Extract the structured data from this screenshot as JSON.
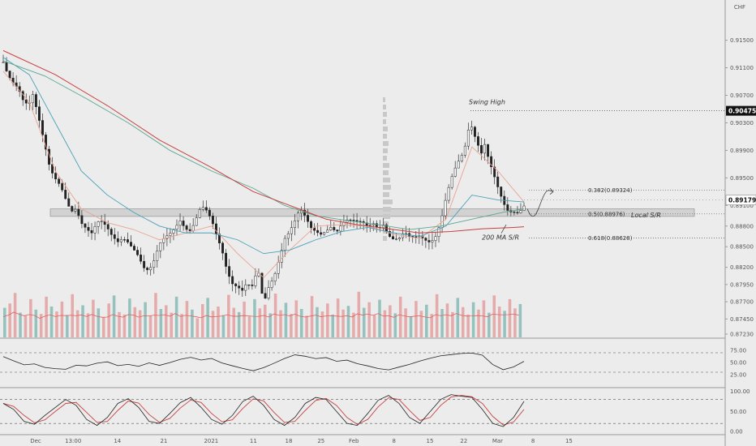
{
  "chart_data": {
    "type": "candlestick",
    "currency": "CHF",
    "yticks": [
      "0.91500",
      "0.91100",
      "0.90700",
      "0.90300",
      "0.89900",
      "0.89500",
      "0.89100",
      "0.88800",
      "0.88500",
      "0.88200",
      "0.87950",
      "0.87700",
      "0.87450",
      "0.87230"
    ],
    "ylim": [
      0.8723,
      0.9174
    ],
    "xticks": [
      {
        "label": "Dec",
        "x": 0.0
      },
      {
        "label": "13:00",
        "x": 0.072
      },
      {
        "label": "14",
        "x": 0.157
      },
      {
        "label": "21",
        "x": 0.246
      },
      {
        "label": "2021",
        "x": 0.337
      },
      {
        "label": "11",
        "x": 0.418
      },
      {
        "label": "18",
        "x": 0.486
      },
      {
        "label": "25",
        "x": 0.548
      },
      {
        "label": "Feb",
        "x": 0.611
      },
      {
        "label": "8",
        "x": 0.688
      },
      {
        "label": "15",
        "x": 0.757
      },
      {
        "label": "22",
        "x": 0.822
      },
      {
        "label": "Mar",
        "x": 0.887
      },
      {
        "label": "8",
        "x": 0.955
      },
      {
        "label": "15",
        "x": 1.024
      }
    ],
    "close_path": [
      [
        0.0,
        0.9118
      ],
      [
        0.01,
        0.9092
      ],
      [
        0.02,
        0.9078
      ],
      [
        0.03,
        0.907
      ],
      [
        0.04,
        0.9055
      ],
      [
        0.05,
        0.906
      ],
      [
        0.055,
        0.908
      ],
      [
        0.06,
        0.907
      ],
      [
        0.07,
        0.904
      ],
      [
        0.08,
        0.9005
      ],
      [
        0.09,
        0.8965
      ],
      [
        0.1,
        0.8945
      ],
      [
        0.11,
        0.893
      ],
      [
        0.12,
        0.891
      ],
      [
        0.13,
        0.8895
      ],
      [
        0.14,
        0.8905
      ],
      [
        0.15,
        0.889
      ],
      [
        0.16,
        0.8885
      ],
      [
        0.17,
        0.8878
      ],
      [
        0.18,
        0.889
      ],
      [
        0.19,
        0.8885
      ],
      [
        0.2,
        0.887
      ],
      [
        0.21,
        0.8855
      ],
      [
        0.22,
        0.885
      ],
      [
        0.23,
        0.886
      ],
      [
        0.24,
        0.886
      ],
      [
        0.25,
        0.8855
      ],
      [
        0.26,
        0.8845
      ],
      [
        0.27,
        0.8825
      ],
      [
        0.28,
        0.8815
      ],
      [
        0.29,
        0.8825
      ],
      [
        0.3,
        0.8845
      ],
      [
        0.31,
        0.8855
      ],
      [
        0.32,
        0.8865
      ],
      [
        0.33,
        0.888
      ],
      [
        0.34,
        0.8895
      ],
      [
        0.35,
        0.8885
      ],
      [
        0.36,
        0.888
      ],
      [
        0.37,
        0.8892
      ],
      [
        0.38,
        0.8905
      ],
      [
        0.39,
        0.8895
      ],
      [
        0.4,
        0.888
      ],
      [
        0.41,
        0.886
      ],
      [
        0.42,
        0.8845
      ],
      [
        0.43,
        0.882
      ],
      [
        0.44,
        0.8805
      ],
      [
        0.45,
        0.88
      ],
      [
        0.46,
        0.879
      ],
      [
        0.47,
        0.88
      ],
      [
        0.475,
        0.8775
      ],
      [
        0.48,
        0.8795
      ],
      [
        0.49,
        0.8805
      ],
      [
        0.5,
        0.876
      ],
      [
        0.51,
        0.879
      ],
      [
        0.52,
        0.881
      ],
      [
        0.53,
        0.884
      ],
      [
        0.54,
        0.887
      ],
      [
        0.55,
        0.8878
      ],
      [
        0.56,
        0.8888
      ],
      [
        0.57,
        0.89
      ],
      [
        0.58,
        0.8885
      ],
      [
        0.59,
        0.887
      ],
      [
        0.6,
        0.8868
      ],
      [
        0.61,
        0.887
      ],
      [
        0.62,
        0.888
      ],
      [
        0.63,
        0.8888
      ],
      [
        0.64,
        0.8878
      ],
      [
        0.65,
        0.8885
      ],
      [
        0.66,
        0.8885
      ],
      [
        0.67,
        0.888
      ],
      [
        0.68,
        0.8878
      ],
      [
        0.69,
        0.888
      ],
      [
        0.7,
        0.888
      ],
      [
        0.71,
        0.889
      ],
      [
        0.72,
        0.8885
      ],
      [
        0.73,
        0.889
      ],
      [
        0.74,
        0.887
      ],
      [
        0.75,
        0.8858
      ],
      [
        0.76,
        0.8855
      ],
      [
        0.77,
        0.8862
      ],
      [
        0.78,
        0.8858
      ],
      [
        0.79,
        0.8862
      ],
      [
        0.8,
        0.887
      ],
      [
        0.81,
        0.8868
      ],
      [
        0.82,
        0.8865
      ],
      [
        0.83,
        0.887
      ],
      [
        0.84,
        0.8885
      ],
      [
        0.85,
        0.8915
      ],
      [
        0.86,
        0.894
      ],
      [
        0.87,
        0.896
      ],
      [
        0.88,
        0.8978
      ],
      [
        0.89,
        0.9005
      ],
      [
        0.895,
        0.9035
      ],
      [
        0.9,
        0.903
      ],
      [
        0.91,
        0.901
      ],
      [
        0.92,
        0.899
      ],
      [
        0.925,
        0.9005
      ],
      [
        0.93,
        0.8985
      ],
      [
        0.94,
        0.8955
      ],
      [
        0.95,
        0.8928
      ],
      [
        0.96,
        0.8905
      ],
      [
        0.97,
        0.8895
      ],
      [
        0.98,
        0.89
      ],
      [
        0.99,
        0.8905
      ],
      [
        1.0,
        0.8918
      ]
    ],
    "lows": [
      [
        0.0,
        0.9105
      ],
      [
        0.08,
        0.899
      ],
      [
        0.18,
        0.8875
      ],
      [
        0.27,
        0.8855
      ],
      [
        0.3,
        0.882
      ],
      [
        0.36,
        0.887
      ],
      [
        0.44,
        0.8825
      ],
      [
        0.475,
        0.8785
      ],
      [
        0.51,
        0.877
      ],
      [
        0.55,
        0.886
      ],
      [
        0.58,
        0.887
      ],
      [
        0.66,
        0.8868
      ],
      [
        0.72,
        0.8875
      ],
      [
        0.77,
        0.8852
      ],
      [
        0.85,
        0.8872
      ],
      [
        0.97,
        0.8882
      ],
      [
        1.0,
        0.89
      ]
    ],
    "highs": [
      [
        0.0,
        0.9135
      ],
      [
        0.06,
        0.9085
      ],
      [
        0.17,
        0.89
      ],
      [
        0.21,
        0.887
      ],
      [
        0.3,
        0.8875
      ],
      [
        0.34,
        0.8905
      ],
      [
        0.38,
        0.8915
      ],
      [
        0.5,
        0.882
      ],
      [
        0.56,
        0.892
      ],
      [
        0.62,
        0.8915
      ],
      [
        0.73,
        0.8905
      ],
      [
        0.895,
        0.9045
      ],
      [
        0.925,
        0.9012
      ],
      [
        1.0,
        0.8935
      ]
    ],
    "ma_fast": [
      [
        0.0,
        0.9105
      ],
      [
        0.05,
        0.906
      ],
      [
        0.1,
        0.896
      ],
      [
        0.15,
        0.8905
      ],
      [
        0.2,
        0.8885
      ],
      [
        0.25,
        0.8875
      ],
      [
        0.3,
        0.886
      ],
      [
        0.35,
        0.887
      ],
      [
        0.4,
        0.888
      ],
      [
        0.45,
        0.884
      ],
      [
        0.5,
        0.8805
      ],
      [
        0.55,
        0.8845
      ],
      [
        0.6,
        0.888
      ],
      [
        0.65,
        0.8882
      ],
      [
        0.7,
        0.888
      ],
      [
        0.75,
        0.8868
      ],
      [
        0.8,
        0.8862
      ],
      [
        0.85,
        0.889
      ],
      [
        0.9,
        0.8995
      ],
      [
        0.95,
        0.896
      ],
      [
        1.0,
        0.8915
      ]
    ],
    "ma_mid": [
      [
        0.0,
        0.9125
      ],
      [
        0.05,
        0.91
      ],
      [
        0.1,
        0.903
      ],
      [
        0.15,
        0.896
      ],
      [
        0.2,
        0.8925
      ],
      [
        0.25,
        0.89
      ],
      [
        0.3,
        0.888
      ],
      [
        0.35,
        0.887
      ],
      [
        0.4,
        0.887
      ],
      [
        0.45,
        0.886
      ],
      [
        0.5,
        0.884
      ],
      [
        0.55,
        0.8845
      ],
      [
        0.6,
        0.886
      ],
      [
        0.65,
        0.8872
      ],
      [
        0.7,
        0.8878
      ],
      [
        0.75,
        0.887
      ],
      [
        0.8,
        0.8865
      ],
      [
        0.85,
        0.888
      ],
      [
        0.9,
        0.8925
      ],
      [
        0.95,
        0.8918
      ],
      [
        1.0,
        0.8915
      ]
    ],
    "ma_slow": [
      [
        0.0,
        0.912
      ],
      [
        0.08,
        0.9098
      ],
      [
        0.16,
        0.9065
      ],
      [
        0.24,
        0.903
      ],
      [
        0.32,
        0.899
      ],
      [
        0.4,
        0.896
      ],
      [
        0.48,
        0.8935
      ],
      [
        0.54,
        0.891
      ],
      [
        0.6,
        0.8895
      ],
      [
        0.66,
        0.8888
      ],
      [
        0.72,
        0.8882
      ],
      [
        0.78,
        0.8875
      ],
      [
        0.84,
        0.888
      ],
      [
        0.9,
        0.889
      ],
      [
        0.96,
        0.89
      ],
      [
        1.0,
        0.8905
      ]
    ],
    "ma_200": [
      [
        0.0,
        0.9135
      ],
      [
        0.1,
        0.91
      ],
      [
        0.2,
        0.9055
      ],
      [
        0.3,
        0.9005
      ],
      [
        0.4,
        0.8965
      ],
      [
        0.48,
        0.893
      ],
      [
        0.55,
        0.891
      ],
      [
        0.62,
        0.889
      ],
      [
        0.68,
        0.8882
      ],
      [
        0.74,
        0.8876
      ],
      [
        0.8,
        0.887
      ],
      [
        0.86,
        0.8872
      ],
      [
        0.92,
        0.8876
      ],
      [
        0.98,
        0.8878
      ],
      [
        1.0,
        0.8879
      ]
    ],
    "levels": {
      "swing_high": {
        "label": "Swing High",
        "price": 0.90475,
        "price_label": "0.90475"
      },
      "fib_382": {
        "label": "0.382(0.89324)",
        "price": 0.89324
      },
      "fib_5": {
        "label": "0.5(0.88976)",
        "price": 0.88976
      },
      "fib_618": {
        "label": "0.618(0.88628)",
        "price": 0.88628
      },
      "local_sr": {
        "label": "Local S/R",
        "top": 0.8905,
        "bottom": 0.8894
      },
      "ma200_label": "200 MA S/R",
      "current": {
        "price": 0.89179,
        "price_label": "0.89179"
      }
    },
    "volume": [
      0.48,
      0.55,
      0.72,
      0.4,
      0.35,
      0.62,
      0.45,
      0.38,
      0.66,
      0.5,
      0.42,
      0.58,
      0.36,
      0.7,
      0.44,
      0.52,
      0.39,
      0.61,
      0.47,
      0.33,
      0.55,
      0.68,
      0.41,
      0.37,
      0.63,
      0.49,
      0.44,
      0.57,
      0.35,
      0.72,
      0.46,
      0.52,
      0.4,
      0.66,
      0.38,
      0.59,
      0.45,
      0.31,
      0.54,
      0.64,
      0.43,
      0.5,
      0.36,
      0.69,
      0.48,
      0.41,
      0.58,
      0.34,
      0.62,
      0.47,
      0.53,
      0.39,
      0.71,
      0.44,
      0.56,
      0.38,
      0.6,
      0.46,
      0.35,
      0.67,
      0.49,
      0.42,
      0.55,
      0.37,
      0.63,
      0.45,
      0.51,
      0.4,
      0.74,
      0.48,
      0.57,
      0.36,
      0.61,
      0.44,
      0.52,
      0.39,
      0.66,
      0.47,
      0.34,
      0.59,
      0.43,
      0.53,
      0.38,
      0.7,
      0.46,
      0.55,
      0.41,
      0.64,
      0.49,
      0.37,
      0.57,
      0.45,
      0.6,
      0.4,
      0.68,
      0.5,
      0.43,
      0.62,
      0.47,
      0.54
    ],
    "rsi": {
      "yticks": [
        "75.00",
        "50.00",
        "25.00"
      ],
      "upper": 70,
      "lower": 30,
      "values": [
        [
          0.0,
          62
        ],
        [
          0.02,
          55
        ],
        [
          0.04,
          48
        ],
        [
          0.06,
          50
        ],
        [
          0.08,
          42
        ],
        [
          0.1,
          38
        ],
        [
          0.12,
          35
        ],
        [
          0.14,
          42
        ],
        [
          0.16,
          40
        ],
        [
          0.18,
          46
        ],
        [
          0.2,
          50
        ],
        [
          0.22,
          44
        ],
        [
          0.24,
          48
        ],
        [
          0.26,
          45
        ],
        [
          0.28,
          52
        ],
        [
          0.3,
          46
        ],
        [
          0.32,
          50
        ],
        [
          0.34,
          55
        ],
        [
          0.36,
          58
        ],
        [
          0.38,
          52
        ],
        [
          0.4,
          56
        ],
        [
          0.42,
          48
        ],
        [
          0.44,
          44
        ],
        [
          0.46,
          40
        ],
        [
          0.48,
          36
        ],
        [
          0.5,
          42
        ],
        [
          0.52,
          50
        ],
        [
          0.54,
          58
        ],
        [
          0.56,
          64
        ],
        [
          0.58,
          60
        ],
        [
          0.6,
          55
        ],
        [
          0.62,
          58
        ],
        [
          0.64,
          52
        ],
        [
          0.66,
          56
        ],
        [
          0.68,
          50
        ],
        [
          0.7,
          46
        ],
        [
          0.72,
          40
        ],
        [
          0.74,
          36
        ],
        [
          0.76,
          40
        ],
        [
          0.78,
          44
        ],
        [
          0.8,
          50
        ],
        [
          0.82,
          56
        ],
        [
          0.84,
          62
        ],
        [
          0.86,
          66
        ],
        [
          0.88,
          70
        ],
        [
          0.9,
          72
        ],
        [
          0.92,
          68
        ],
        [
          0.94,
          48
        ],
        [
          0.96,
          36
        ],
        [
          0.98,
          40
        ],
        [
          1.0,
          50
        ]
      ]
    },
    "stoch": {
      "yticks": [
        "100.00",
        "50.00",
        "0.00"
      ],
      "upper": 80,
      "lower": 20,
      "k": [
        [
          0.0,
          70
        ],
        [
          0.02,
          55
        ],
        [
          0.04,
          25
        ],
        [
          0.06,
          18
        ],
        [
          0.08,
          40
        ],
        [
          0.1,
          60
        ],
        [
          0.12,
          80
        ],
        [
          0.14,
          65
        ],
        [
          0.16,
          30
        ],
        [
          0.18,
          15
        ],
        [
          0.2,
          35
        ],
        [
          0.22,
          70
        ],
        [
          0.24,
          82
        ],
        [
          0.26,
          60
        ],
        [
          0.28,
          25
        ],
        [
          0.3,
          20
        ],
        [
          0.32,
          45
        ],
        [
          0.34,
          72
        ],
        [
          0.36,
          85
        ],
        [
          0.38,
          60
        ],
        [
          0.4,
          30
        ],
        [
          0.42,
          18
        ],
        [
          0.44,
          40
        ],
        [
          0.46,
          75
        ],
        [
          0.48,
          88
        ],
        [
          0.5,
          65
        ],
        [
          0.52,
          30
        ],
        [
          0.54,
          15
        ],
        [
          0.56,
          35
        ],
        [
          0.58,
          70
        ],
        [
          0.6,
          85
        ],
        [
          0.62,
          80
        ],
        [
          0.64,
          50
        ],
        [
          0.66,
          20
        ],
        [
          0.68,
          15
        ],
        [
          0.7,
          45
        ],
        [
          0.72,
          78
        ],
        [
          0.74,
          90
        ],
        [
          0.76,
          70
        ],
        [
          0.78,
          35
        ],
        [
          0.8,
          20
        ],
        [
          0.82,
          50
        ],
        [
          0.84,
          80
        ],
        [
          0.86,
          92
        ],
        [
          0.88,
          88
        ],
        [
          0.9,
          85
        ],
        [
          0.92,
          55
        ],
        [
          0.94,
          20
        ],
        [
          0.96,
          12
        ],
        [
          0.98,
          35
        ],
        [
          1.0,
          75
        ]
      ]
    }
  }
}
